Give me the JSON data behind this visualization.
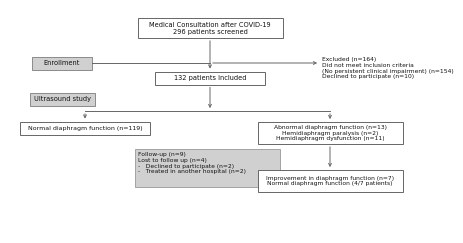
{
  "title": "Medical Consultation after COVID-19\n296 patients screened",
  "enrollment_label": "Enrollment",
  "excluded_text": "Excluded (n=164)\nDid not meet inclusion criteria\n(No persistent clinical impairment) (n=154)\nDeclined to participate (n=10)",
  "included_text": "132 patients included",
  "ultrasound_label": "Ultrasound study",
  "normal_text": "Normal diaphragm function (n=119)",
  "abnormal_text": "Abnormal diaphragm function (n=13)\nHemidiaphragm paralysis (n=2)\nHemidiaphragm dysfunction (n=11)",
  "followup_text": "Follow-up (n=9)\nLost to follow up (n=4)\n-   Declined to participate (n=2)\n-   Treated in another hospital (n=2)",
  "improvement_text": "Improvement in diaphragm function (n=7)\nNormal diaphragm function (4/7 patients)",
  "bg_color": "#ffffff",
  "box_edge_color": "#666666",
  "box_fill_white": "#ffffff",
  "box_fill_gray": "#d0d0d0",
  "text_color": "#111111",
  "font_size": 4.8
}
